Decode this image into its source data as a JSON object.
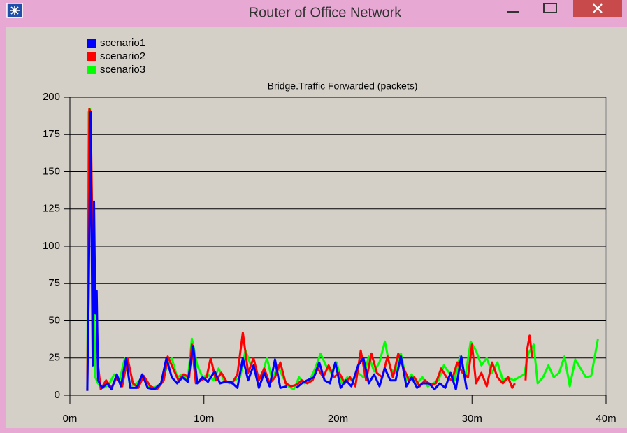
{
  "window": {
    "title": "Router of Office Network"
  },
  "chart_data": {
    "type": "line",
    "subtitle": "Bridge.Traffic Forwarded (packets)",
    "xlim": [
      0,
      40
    ],
    "xticks": [
      {
        "value": 0,
        "label": "0m"
      },
      {
        "value": 10,
        "label": "10m"
      },
      {
        "value": 20,
        "label": "20m"
      },
      {
        "value": 30,
        "label": "30m"
      },
      {
        "value": 40,
        "label": "40m"
      }
    ],
    "ylim": [
      0,
      200
    ],
    "yticks": [
      0,
      25,
      50,
      75,
      100,
      125,
      150,
      175,
      200
    ],
    "grid": true,
    "legend": "top-left",
    "series": [
      {
        "name": "scenario1",
        "color": "#0000ff",
        "x": [
          1.3,
          1.4,
          1.55,
          1.7,
          1.8,
          1.9,
          2.0,
          2.1,
          2.4,
          2.8,
          3.1,
          3.5,
          3.8,
          4.2,
          4.5,
          5.0,
          5.4,
          5.8,
          6.3,
          6.8,
          7.2,
          7.6,
          8.0,
          8.4,
          8.8,
          9.2,
          9.5,
          9.9,
          10.3,
          10.8,
          11.2,
          11.6,
          12.0,
          12.5,
          12.9,
          13.3,
          13.7,
          14.1,
          14.5,
          14.9,
          15.3,
          15.7,
          16.2,
          null,
          16.9,
          17.3,
          17.7,
          18.2,
          18.6,
          19.0,
          19.4,
          19.8,
          20.2,
          20.6,
          21.0,
          21.5,
          21.9,
          22.3,
          22.7,
          23.1,
          23.5,
          23.9,
          24.3,
          24.7,
          25.1,
          25.5,
          25.9,
          26.3,
          26.8,
          27.2,
          27.6,
          28.0,
          28.4,
          28.8,
          29.2,
          29.6
        ],
        "values": [
          3,
          65,
          190,
          20,
          130,
          55,
          70,
          10,
          5,
          8,
          4,
          14,
          6,
          25,
          5,
          5,
          14,
          5,
          4,
          8,
          25,
          12,
          8,
          12,
          9,
          33,
          8,
          12,
          9,
          16,
          8,
          9,
          9,
          5,
          25,
          10,
          20,
          5,
          15,
          6,
          24,
          5,
          6,
          null,
          5,
          8,
          10,
          12,
          22,
          10,
          8,
          22,
          5,
          10,
          6,
          20,
          25,
          8,
          14,
          6,
          18,
          10,
          10,
          26,
          6,
          12,
          5,
          8,
          8,
          4,
          8,
          5,
          15,
          4,
          26,
          4
        ]
      },
      {
        "name": "scenario2",
        "color": "#ff0000",
        "x": [
          1.3,
          1.45,
          1.55,
          1.65,
          1.75,
          1.85,
          1.95,
          2.1,
          2.3,
          2.7,
          3.1,
          3.5,
          3.9,
          4.3,
          4.7,
          5.1,
          5.5,
          6.0,
          6.5,
          7.0,
          7.3,
          7.7,
          8.1,
          8.5,
          8.9,
          9.1,
          9.4,
          9.8,
          10.2,
          10.5,
          10.9,
          11.3,
          11.7,
          12.1,
          12.5,
          12.9,
          13.3,
          13.7,
          14.1,
          14.5,
          14.9,
          15.3,
          15.7,
          16.1,
          16.5,
          16.9,
          17.3,
          17.7,
          18.1,
          18.5,
          18.9,
          19.3,
          19.7,
          20.1,
          20.5,
          20.9,
          21.3,
          21.7,
          22.1,
          22.5,
          22.9,
          23.3,
          23.7,
          24.1,
          24.5,
          24.9,
          25.3,
          25.7,
          26.1,
          26.5,
          26.9,
          27.3,
          27.7,
          28.1,
          28.5,
          28.9,
          29.3,
          29.7,
          30.0,
          30.3,
          30.7,
          31.1,
          31.5,
          31.9,
          32.3,
          32.7,
          33.0,
          33.2,
          null,
          34.0,
          34.1,
          34.3,
          34.5
        ],
        "values": [
          3,
          192,
          190,
          128,
          100,
          58,
          70,
          20,
          4,
          10,
          5,
          12,
          6,
          25,
          8,
          5,
          13,
          6,
          4,
          10,
          26,
          18,
          10,
          14,
          12,
          34,
          8,
          10,
          12,
          25,
          10,
          15,
          9,
          8,
          14,
          42,
          15,
          25,
          10,
          18,
          8,
          12,
          22,
          8,
          6,
          7,
          10,
          8,
          10,
          18,
          12,
          20,
          12,
          15,
          8,
          12,
          6,
          30,
          10,
          28,
          15,
          12,
          26,
          12,
          28,
          18,
          10,
          12,
          6,
          10,
          7,
          8,
          18,
          12,
          10,
          22,
          15,
          12,
          34,
          8,
          15,
          6,
          22,
          12,
          8,
          12,
          5,
          8,
          null,
          10,
          30,
          40,
          25
        ]
      },
      {
        "name": "scenario3",
        "color": "#00ff00",
        "x": [
          1.3,
          1.4,
          1.5,
          1.6,
          1.7,
          1.8,
          1.9,
          2.1,
          2.5,
          2.9,
          3.3,
          3.7,
          4.1,
          4.5,
          5.0,
          5.4,
          5.9,
          6.3,
          6.8,
          7.2,
          7.6,
          8.0,
          8.4,
          8.8,
          9.1,
          9.5,
          9.9,
          10.3,
          10.7,
          11.1,
          11.5,
          11.9,
          12.3,
          12.7,
          13.1,
          13.5,
          13.9,
          14.3,
          14.7,
          15.1,
          15.5,
          15.9,
          16.3,
          16.7,
          17.1,
          17.5,
          17.9,
          18.3,
          18.7,
          19.1,
          19.5,
          19.9,
          20.3,
          20.7,
          21.1,
          21.5,
          21.9,
          22.3,
          22.7,
          23.1,
          23.5,
          23.9,
          24.3,
          24.7,
          25.1,
          25.5,
          25.9,
          26.3,
          26.7,
          27.1,
          27.5,
          27.9,
          28.3,
          28.7,
          29.1,
          29.5,
          29.9,
          30.3,
          30.7,
          31.1,
          31.5,
          31.9,
          32.3,
          32.7,
          33.1,
          33.5,
          33.9,
          34.2,
          34.6,
          34.9,
          35.3,
          35.7,
          36.1,
          36.5,
          36.9,
          37.3,
          37.7,
          38.1,
          38.5,
          38.9,
          39.4
        ],
        "values": [
          3,
          190,
          192,
          150,
          100,
          60,
          12,
          8,
          5,
          7,
          14,
          10,
          25,
          6,
          8,
          12,
          6,
          5,
          8,
          18,
          25,
          12,
          14,
          10,
          38,
          20,
          12,
          14,
          10,
          18,
          10,
          8,
          10,
          12,
          30,
          20,
          15,
          12,
          25,
          10,
          20,
          12,
          6,
          4,
          12,
          8,
          10,
          18,
          28,
          20,
          15,
          22,
          8,
          12,
          10,
          15,
          12,
          26,
          16,
          22,
          36,
          18,
          15,
          28,
          10,
          14,
          8,
          12,
          6,
          8,
          10,
          20,
          15,
          10,
          26,
          12,
          36,
          30,
          20,
          25,
          15,
          22,
          10,
          12,
          10,
          12,
          14,
          28,
          34,
          8,
          12,
          20,
          12,
          15,
          26,
          6,
          24,
          18,
          12,
          13,
          38
        ]
      }
    ]
  }
}
